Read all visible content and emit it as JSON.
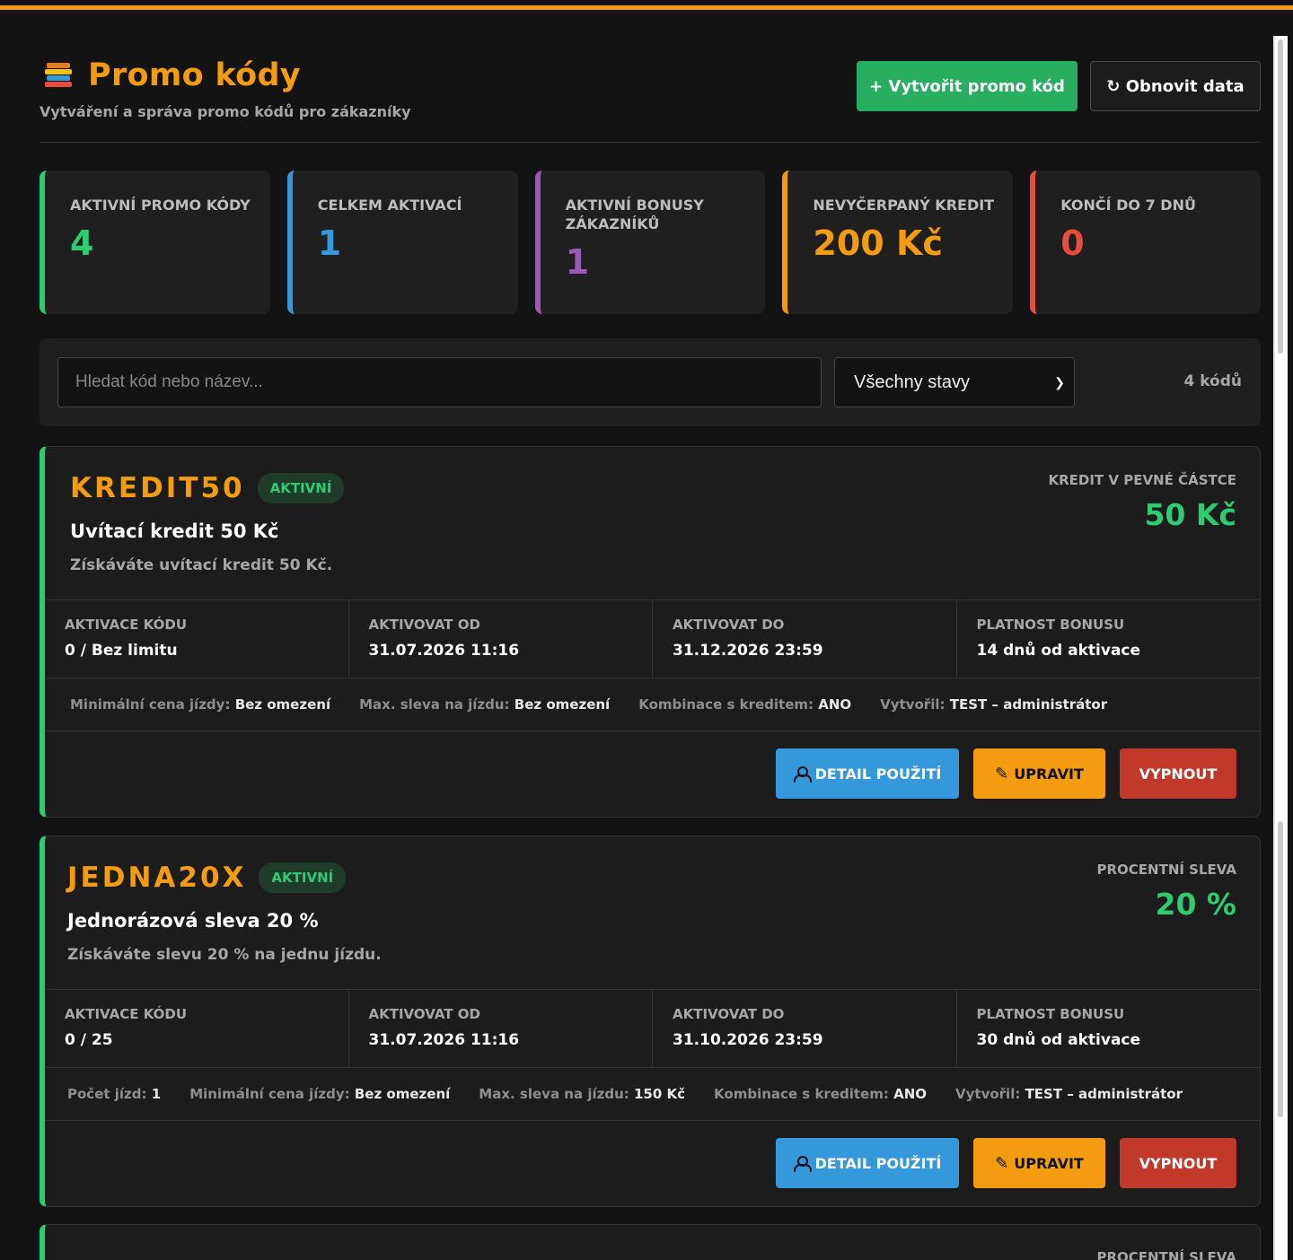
{
  "header": {
    "title": "Promo kódy",
    "subtitle": "Vytváření a správa promo kódů pro zákazníky",
    "create_label": "+ Vytvořit promo kód",
    "refresh_label": "↻ Obnovit data"
  },
  "stats": [
    {
      "label": "AKTIVNÍ PROMO KÓDY",
      "value": "4",
      "color": "#2ecc71"
    },
    {
      "label": "CELKEM AKTIVACÍ",
      "value": "1",
      "color": "#3498db"
    },
    {
      "label": "AKTIVNÍ BONUSY ZÁKAZNÍKŮ",
      "value": "1",
      "color": "#9b59b6"
    },
    {
      "label": "NEVYČERPANÝ KREDIT",
      "value": "200 Kč",
      "color": "#f39c12"
    },
    {
      "label": "KONČÍ DO 7 DNŮ",
      "value": "0",
      "color": "#e74c3c"
    }
  ],
  "filters": {
    "search_placeholder": "Hledat kód nebo název...",
    "status_selected": "Všechny stavy",
    "count": "4 kódů"
  },
  "cards": [
    {
      "code": "KREDIT50",
      "badge": "AKTIVNÍ",
      "name": "Uvítací kredit 50 Kč",
      "description": "Získáváte uvítací kredit 50 Kč.",
      "type": "KREDIT V PEVNÉ ČÁSTCE",
      "value": "50 Kč",
      "cells": [
        {
          "label": "AKTIVACE KÓDU",
          "value": "0 / Bez limitu"
        },
        {
          "label": "AKTIVOVAT OD",
          "value": "31.07.2026 11:16"
        },
        {
          "label": "AKTIVOVAT DO",
          "value": "31.12.2026 23:59"
        },
        {
          "label": "PLATNOST BONUSU",
          "value": "14 dnů od aktivace"
        }
      ],
      "meta": [
        {
          "label": "Minimální cena jízdy:",
          "value": "Bez omezení"
        },
        {
          "label": "Max. sleva na jízdu:",
          "value": "Bez omezení"
        },
        {
          "label": "Kombinace s kreditem:",
          "value": "ANO"
        },
        {
          "label": "Vytvořil:",
          "value": "TEST – administrátor"
        }
      ],
      "actions": {
        "detail": "DETAIL POUŽITÍ",
        "edit": "UPRAVIT",
        "off": "VYPNOUT"
      }
    },
    {
      "code": "JEDNA20X",
      "badge": "AKTIVNÍ",
      "name": "Jednorázová sleva 20 %",
      "description": "Získáváte slevu 20 % na jednu jízdu.",
      "type": "PROCENTNÍ SLEVA",
      "value": "20 %",
      "cells": [
        {
          "label": "AKTIVACE KÓDU",
          "value": "0 / 25"
        },
        {
          "label": "AKTIVOVAT OD",
          "value": "31.07.2026 11:16"
        },
        {
          "label": "AKTIVOVAT DO",
          "value": "31.10.2026 23:59"
        },
        {
          "label": "PLATNOST BONUSU",
          "value": "30 dnů od aktivace"
        }
      ],
      "meta": [
        {
          "label": "Počet jízd:",
          "value": "1"
        },
        {
          "label": "Minimální cena jízdy:",
          "value": "Bez omezení"
        },
        {
          "label": "Max. sleva na jízdu:",
          "value": "150 Kč"
        },
        {
          "label": "Kombinace s kreditem:",
          "value": "ANO"
        },
        {
          "label": "Vytvořil:",
          "value": "TEST – administrátor"
        }
      ],
      "actions": {
        "detail": "DETAIL POUŽITÍ",
        "edit": "UPRAVIT",
        "off": "VYPNOUT"
      }
    },
    {
      "type": "PROCENTNÍ SLEVA"
    }
  ],
  "colors": {
    "accent": "#f39c12",
    "active": "#2ecc71",
    "detail": "#3498db",
    "off": "#c0392b"
  }
}
